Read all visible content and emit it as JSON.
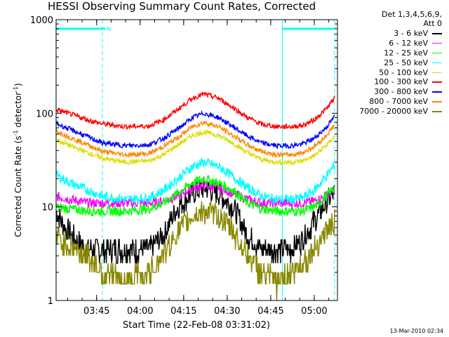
{
  "chart_data": {
    "type": "line",
    "title": "HESSI Observing Summary Count Rates, Corrected",
    "xlabel": "Start Time (22-Feb-08 03:31:02)",
    "ylabel": "Corrected Count Rate (s",
    "ylabel_sup1": "-1",
    "ylabel_mid": " detector",
    "ylabel_sup2": "-1",
    "ylabel_end": ")",
    "yscale": "log",
    "ylim": [
      1,
      1000
    ],
    "xlim": [
      "03:31:02",
      "05:08:00"
    ],
    "x_ticks": [
      "03:45",
      "04:00",
      "04:15",
      "04:30",
      "04:45",
      "05:00"
    ],
    "y_ticks": [
      "1",
      "10",
      "100",
      "1000"
    ],
    "legend_header": [
      "Det 1,3,4,5,6,9,",
      "Att 0"
    ],
    "legend_placement": "right",
    "series": [
      {
        "name": "3 - 6 keV",
        "color": "#000000",
        "x": [
          "03:31",
          "03:34",
          "03:38",
          "03:42",
          "03:47",
          "03:55",
          "04:03",
          "04:08",
          "04:13",
          "04:18",
          "04:22",
          "04:27",
          "04:32",
          "04:37",
          "04:42",
          "04:47",
          "04:52",
          "04:56",
          "05:00",
          "05:04",
          "05:07"
        ],
        "y": [
          9,
          6,
          4.5,
          3.5,
          3.5,
          3.5,
          3.5,
          5,
          10,
          14,
          16,
          14,
          10,
          5,
          3.5,
          3.5,
          3.5,
          4.5,
          7,
          11,
          14
        ]
      },
      {
        "name": "6 - 12 keV",
        "color": "#ff00ff",
        "x": [
          "03:31",
          "03:36",
          "03:42",
          "03:47",
          "03:55",
          "04:03",
          "04:08",
          "04:13",
          "04:18",
          "04:22",
          "04:27",
          "04:32",
          "04:37",
          "04:42",
          "04:47",
          "04:52",
          "04:56",
          "05:00",
          "05:04",
          "05:07"
        ],
        "y": [
          13,
          12,
          11,
          11,
          11,
          11,
          11.5,
          13,
          16,
          17,
          16,
          14,
          12,
          11,
          11,
          11,
          11,
          11.5,
          13,
          15
        ]
      },
      {
        "name": "12 - 25 keV",
        "color": "#00ff00",
        "x": [
          "03:31",
          "03:36",
          "03:42",
          "03:47",
          "03:55",
          "04:03",
          "04:08",
          "04:13",
          "04:18",
          "04:22",
          "04:27",
          "04:32",
          "04:37",
          "04:42",
          "04:47",
          "04:52",
          "04:56",
          "05:00",
          "05:04",
          "05:07"
        ],
        "y": [
          10,
          9.5,
          9,
          9,
          9,
          9.5,
          11,
          14,
          18,
          20,
          18,
          15,
          11,
          9.5,
          9,
          9,
          9,
          10,
          13,
          16
        ]
      },
      {
        "name": "25 - 50 keV",
        "color": "#00ffff",
        "x": [
          "03:31",
          "03:36",
          "03:42",
          "03:47",
          "03:55",
          "04:03",
          "04:08",
          "04:13",
          "04:18",
          "04:22",
          "04:27",
          "04:32",
          "04:37",
          "04:42",
          "04:47",
          "04:52",
          "04:56",
          "05:00",
          "05:04",
          "05:07"
        ],
        "y": [
          22,
          18,
          15,
          13,
          12,
          12.5,
          15,
          20,
          27,
          30,
          27,
          21,
          16,
          13,
          12,
          12,
          12.5,
          15,
          21,
          28
        ]
      },
      {
        "name": "50 - 100 keV",
        "color": "#dddd00",
        "x": [
          "03:31",
          "03:36",
          "03:42",
          "03:47",
          "03:55",
          "04:03",
          "04:08",
          "04:13",
          "04:18",
          "04:22",
          "04:27",
          "04:32",
          "04:37",
          "04:42",
          "04:47",
          "04:52",
          "04:56",
          "05:00",
          "05:04",
          "05:07"
        ],
        "y": [
          52,
          45,
          38,
          33,
          30,
          31,
          36,
          46,
          58,
          63,
          58,
          48,
          38,
          32,
          30,
          30,
          31,
          35,
          45,
          56
        ]
      },
      {
        "name": "100 - 300 keV",
        "color": "#ff0000",
        "x": [
          "03:31",
          "03:36",
          "03:42",
          "03:47",
          "03:55",
          "04:03",
          "04:08",
          "04:13",
          "04:18",
          "04:22",
          "04:27",
          "04:32",
          "04:37",
          "04:42",
          "04:47",
          "04:52",
          "04:56",
          "05:00",
          "05:04",
          "05:07"
        ],
        "y": [
          110,
          98,
          85,
          77,
          72,
          73,
          85,
          110,
          145,
          160,
          145,
          115,
          90,
          76,
          72,
          72,
          74,
          85,
          110,
          145
        ]
      },
      {
        "name": "300 - 800 keV",
        "color": "#0000ff",
        "x": [
          "03:31",
          "03:36",
          "03:42",
          "03:47",
          "03:55",
          "04:03",
          "04:08",
          "04:13",
          "04:18",
          "04:22",
          "04:27",
          "04:32",
          "04:37",
          "04:42",
          "04:47",
          "04:52",
          "04:56",
          "05:00",
          "05:04",
          "05:07"
        ],
        "y": [
          78,
          67,
          56,
          48,
          45,
          46,
          54,
          68,
          90,
          100,
          90,
          72,
          57,
          48,
          45,
          45,
          47,
          54,
          70,
          92
        ]
      },
      {
        "name": "800 - 7000 keV",
        "color": "#ff8800",
        "x": [
          "03:31",
          "03:36",
          "03:42",
          "03:47",
          "03:55",
          "04:03",
          "04:08",
          "04:13",
          "04:18",
          "04:22",
          "04:27",
          "04:32",
          "04:37",
          "04:42",
          "04:47",
          "04:52",
          "04:56",
          "05:00",
          "05:04",
          "05:07"
        ],
        "y": [
          65,
          55,
          46,
          39,
          36,
          37,
          44,
          55,
          72,
          80,
          72,
          58,
          46,
          39,
          36,
          36,
          38,
          44,
          57,
          75
        ]
      },
      {
        "name": "7000 - 20000 keV",
        "color": "#888800",
        "x": [
          "03:31",
          "03:34",
          "03:38",
          "03:42",
          "03:47",
          "03:55",
          "04:03",
          "04:08",
          "04:13",
          "04:18",
          "04:22",
          "04:27",
          "04:32",
          "04:37",
          "04:42",
          "04:47",
          "04:52",
          "04:56",
          "05:00",
          "05:04",
          "05:07"
        ],
        "y": [
          5,
          4,
          3.5,
          3,
          2,
          1.6,
          2,
          3,
          5.5,
          8,
          9,
          8,
          5.5,
          3,
          2,
          1.6,
          2,
          2.5,
          3.5,
          5.5,
          7
        ]
      }
    ],
    "flags": [
      {
        "label": "",
        "x_start": "03:31",
        "x_end": "03:46"
      },
      {
        "label": "N",
        "x_start": "03:46",
        "x_end": "03:48"
      },
      {
        "label": "",
        "x_start": "04:49",
        "x_end": "05:07"
      }
    ],
    "markers": [
      {
        "x": "03:31",
        "style": "solid"
      },
      {
        "x": "03:47",
        "style": "dashed"
      },
      {
        "x": "04:49",
        "style": "solid"
      },
      {
        "x": "05:07",
        "style": "dashed"
      }
    ],
    "flag_color": "#00ffff",
    "grid": false
  },
  "footer": "13-Mar-2010 02:34"
}
